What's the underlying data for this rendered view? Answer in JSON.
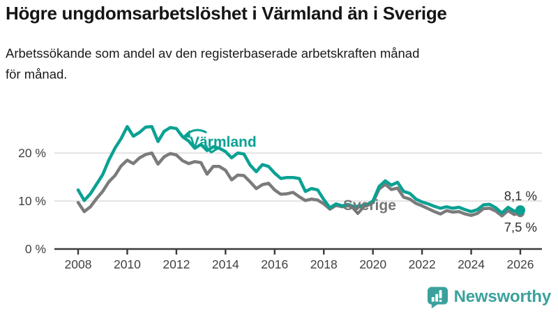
{
  "header": {
    "title": "Högre ungdomsarbetslöshet i Värmland än i Sverige",
    "subtitle_lines": [
      "Arbetssökande som andel av den registerbaserade arbetskraften månad",
      "för månad."
    ]
  },
  "chart_data": {
    "type": "line",
    "title": "Högre ungdomsarbetslöshet i Värmland än i Sverige",
    "subtitle": "Arbetssökande som andel av den registerbaserade arbetskraften månad för månad.",
    "xlabel": "",
    "ylabel": "",
    "x_unit": "year (monthly data)",
    "y_unit": "%",
    "x_start": 2008,
    "x_step": 0.25,
    "xlim": [
      2007.9,
      2027.5
    ],
    "ylim": [
      0,
      28.5
    ],
    "grid": "horizontal",
    "legend_position": "inline-labels",
    "x_ticks": [
      2008,
      2010,
      2012,
      2014,
      2016,
      2018,
      2020,
      2022,
      2024,
      2026
    ],
    "y_ticks": [
      {
        "value": 0,
        "label": "0 %"
      },
      {
        "value": 10,
        "label": "10 %"
      },
      {
        "value": 20,
        "label": "20 %"
      }
    ],
    "series": [
      {
        "name": "Sverige",
        "color": "#7b7b7b",
        "end_value": 7.5,
        "end_label": "7,5 %",
        "values": [
          9.7,
          7.8,
          8.8,
          10.5,
          12.0,
          14.0,
          15.3,
          17.3,
          18.5,
          17.8,
          19.0,
          19.7,
          20.0,
          17.7,
          19.2,
          19.9,
          19.6,
          18.4,
          17.8,
          18.2,
          18.0,
          15.6,
          17.2,
          17.2,
          16.4,
          14.4,
          15.4,
          15.3,
          14.0,
          12.6,
          13.4,
          13.7,
          12.3,
          11.4,
          11.5,
          11.8,
          10.9,
          10.1,
          10.4,
          10.2,
          9.4,
          8.3,
          9.1,
          8.8,
          9.0,
          8.6,
          8.8,
          9.0,
          9.7,
          12.5,
          13.5,
          12.4,
          12.7,
          10.8,
          10.4,
          9.5,
          9.0,
          8.4,
          7.8,
          7.3,
          8.0,
          7.7,
          7.8,
          7.3,
          7.0,
          7.4,
          8.4,
          8.5,
          7.9,
          6.9,
          8.0,
          7.2,
          7.5
        ]
      },
      {
        "name": "Värmland",
        "color": "#0aa193",
        "end_value": 8.1,
        "end_label": "8,1 %",
        "values": [
          12.3,
          10.1,
          11.5,
          13.5,
          15.5,
          18.5,
          21.0,
          23.0,
          25.5,
          23.5,
          24.3,
          25.4,
          25.5,
          22.4,
          24.5,
          25.3,
          25.1,
          23.4,
          22.5,
          21.0,
          21.8,
          20.5,
          21.3,
          21.0,
          20.3,
          19.0,
          20.0,
          19.8,
          17.5,
          16.1,
          17.6,
          17.2,
          15.8,
          14.7,
          14.9,
          14.9,
          14.7,
          12.0,
          12.6,
          12.3,
          10.3,
          8.6,
          9.4,
          9.0,
          9.3,
          8.8,
          9.0,
          9.2,
          10.0,
          13.0,
          14.2,
          13.3,
          13.9,
          12.0,
          11.6,
          10.4,
          9.8,
          9.4,
          8.9,
          8.5,
          8.8,
          8.5,
          8.7,
          8.2,
          7.8,
          8.2,
          9.2,
          9.3,
          8.6,
          7.5,
          8.7,
          7.9,
          8.1
        ]
      }
    ]
  },
  "colors": {
    "varmland_teal": "#0aa193",
    "sverige_gray": "#7b7b7b",
    "axis_line": "#3a3a3a",
    "gridline": "#dcdcdc",
    "tick_text": "#414141",
    "title_text": "#151515",
    "brand_teal": "#3ba19c"
  },
  "footer": {
    "brand": "Newsworthy"
  }
}
